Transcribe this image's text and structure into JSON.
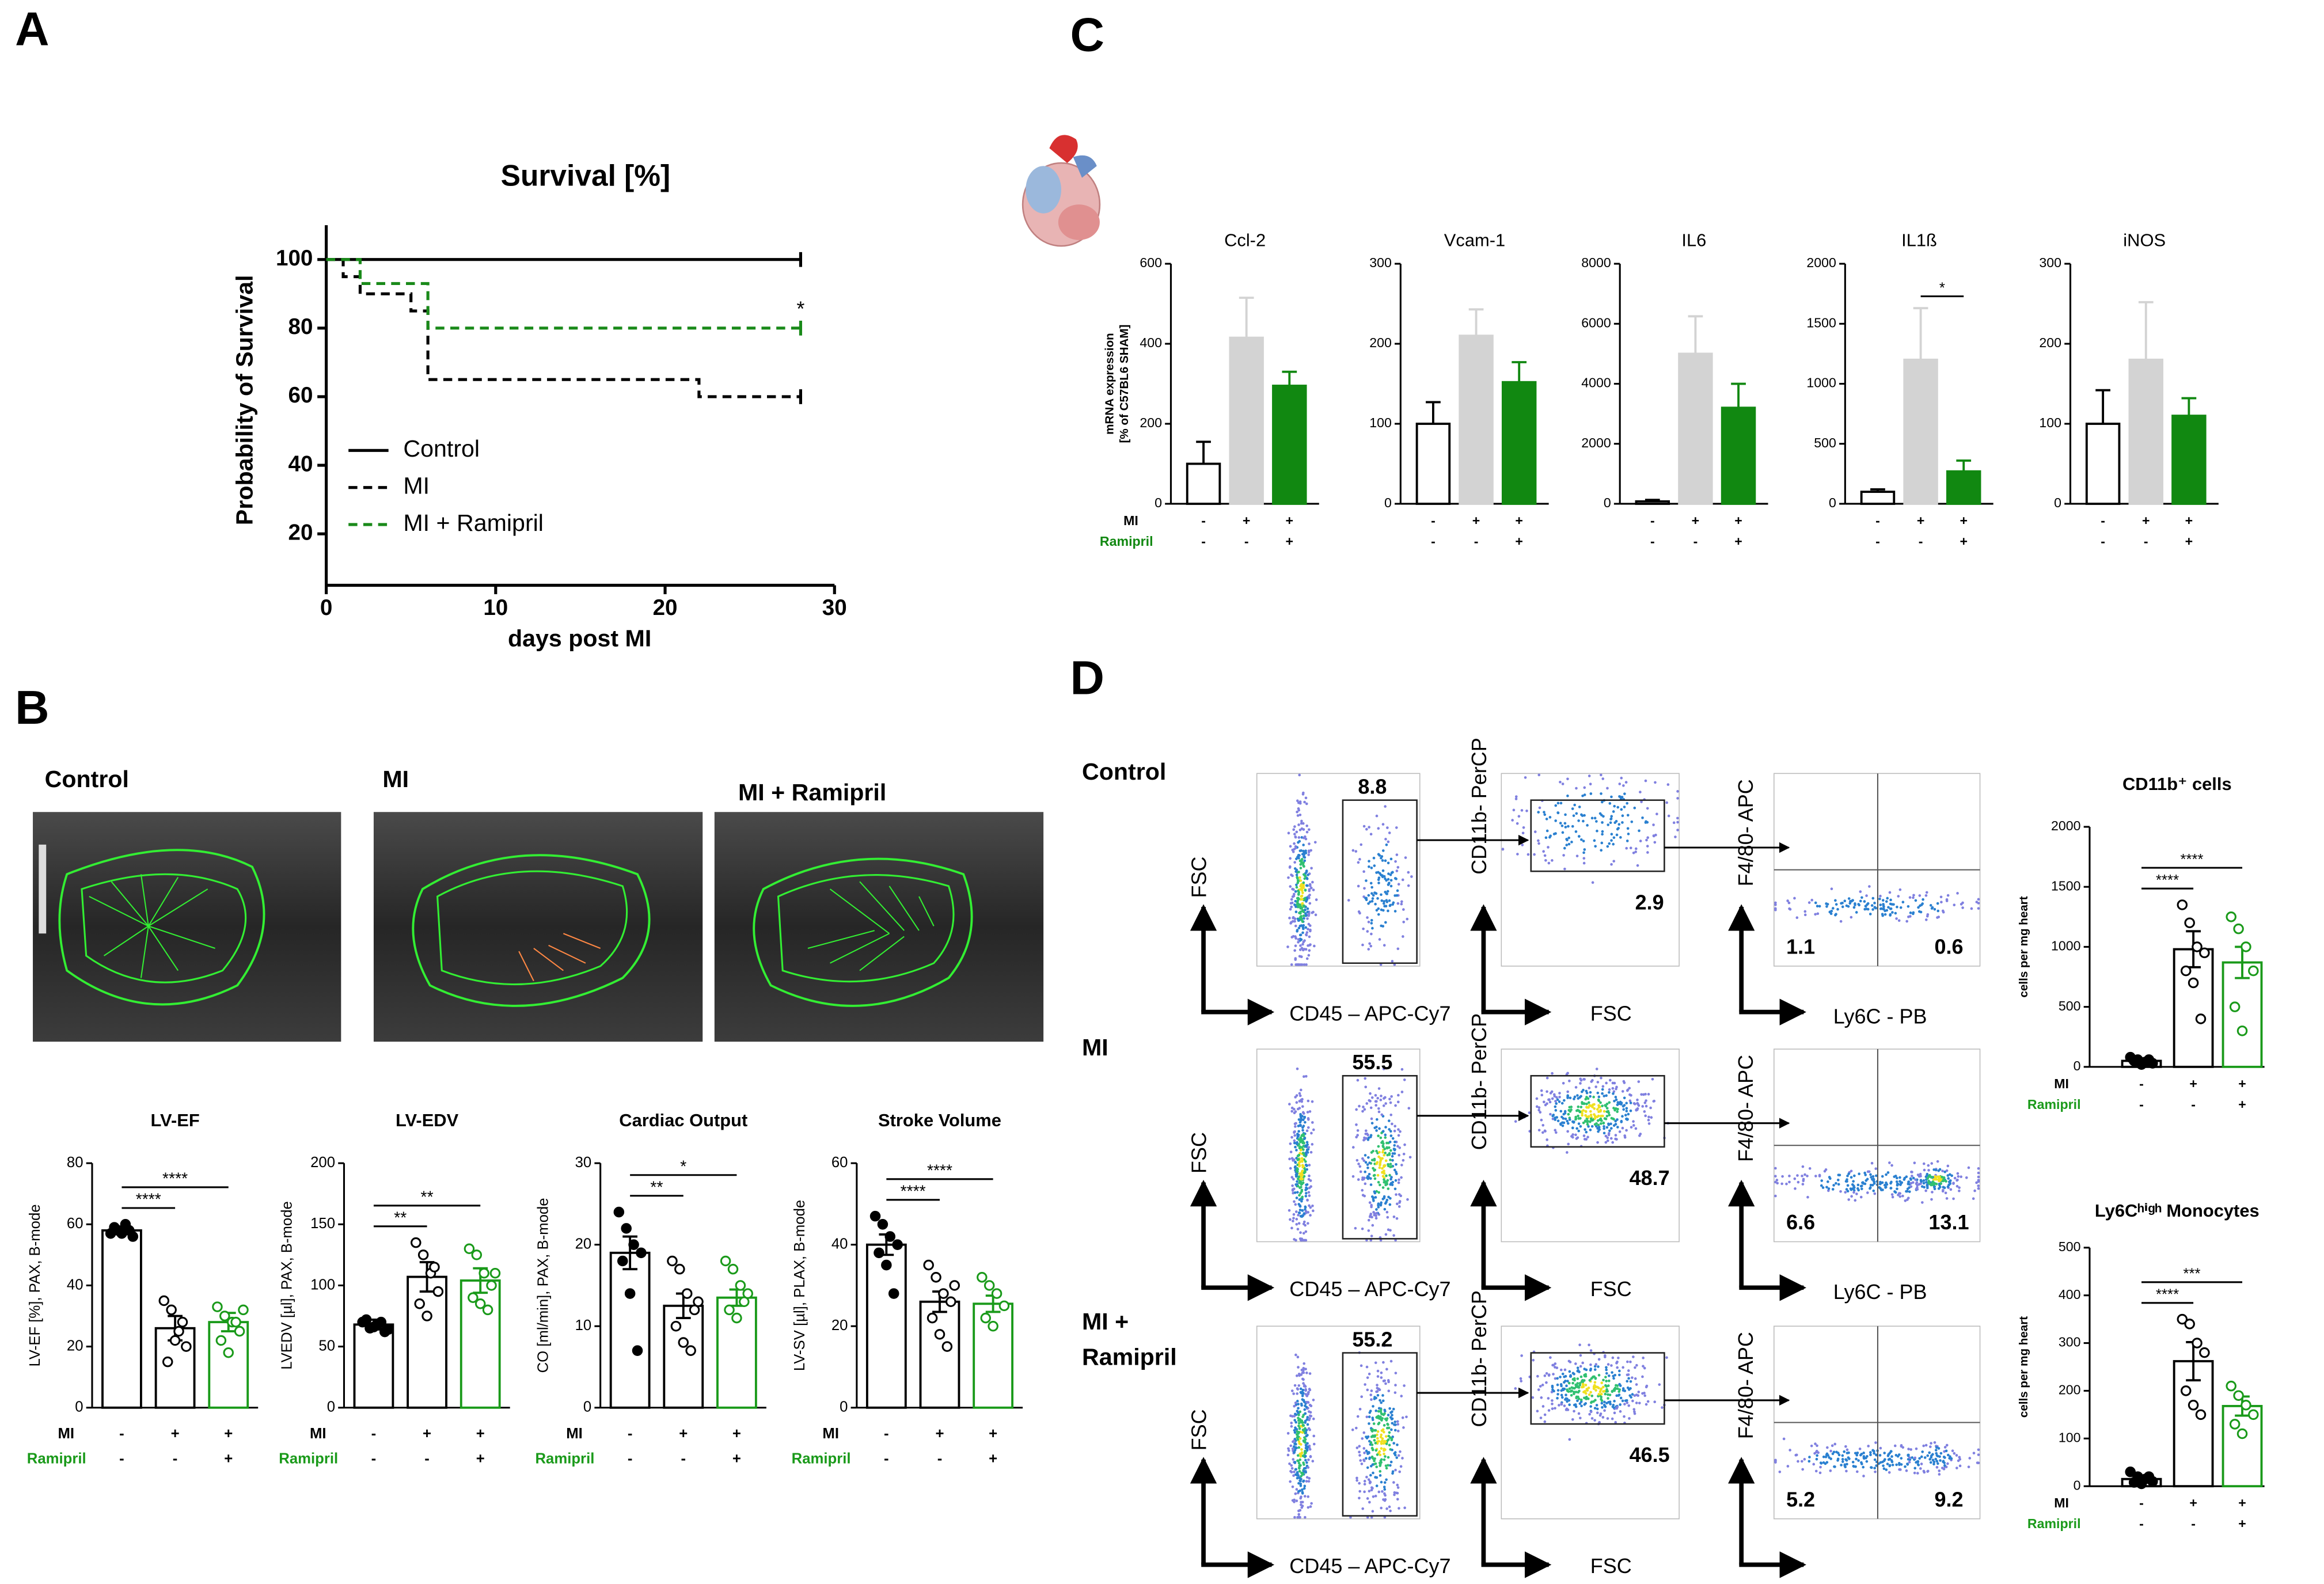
{
  "panel_labels": [
    "A",
    "B",
    "C",
    "D"
  ],
  "echo": {
    "labels": [
      "Control",
      "MI",
      "MI + Ramipril"
    ]
  },
  "flow": {
    "rows": [
      {
        "label": [
          "Control"
        ],
        "gates": [
          8.8,
          2.9,
          1.1,
          0.6
        ],
        "axis_labels": [
          "FSC",
          "CD45 – APC-Cy7",
          "CD11b- PerCP",
          "FSC",
          "F4/80- APC",
          "Ly6C - PB"
        ]
      },
      {
        "label": [
          "MI"
        ],
        "gates": [
          55.5,
          48.7,
          6.6,
          13.1
        ],
        "axis_labels": [
          "FSC",
          "CD45 – APC-Cy7",
          "CD11b- PerCP",
          "FSC",
          "F4/80- APC",
          "Ly6C - PB"
        ]
      },
      {
        "label": [
          "MI +",
          "Ramipril"
        ],
        "gates": [
          55.2,
          46.5,
          5.2,
          9.2
        ],
        "axis_labels": [
          "FSC",
          "CD45 – APC-Cy7",
          "CD11b- PerCP",
          "FSC",
          "F4/80- APC"
        ]
      }
    ]
  },
  "chart_data": [
    {
      "type": "line",
      "step": true,
      "title": "Survival [%]",
      "xlabel": "days post MI",
      "ylabel": "Probability of Survival",
      "xlim": [
        0,
        30
      ],
      "xticks": [
        0,
        10,
        20,
        30
      ],
      "ylim": [
        5,
        110
      ],
      "yticks": [
        20,
        40,
        60,
        80,
        100
      ],
      "series": [
        {
          "name": "Control",
          "color": "#000000",
          "dashed": false,
          "x": [
            0,
            28
          ],
          "values": [
            100,
            100
          ]
        },
        {
          "name": "MI",
          "color": "#000000",
          "dashed": true,
          "x": [
            0,
            1,
            2,
            5,
            6,
            22,
            28
          ],
          "values": [
            100,
            95,
            90,
            85,
            65,
            60,
            60
          ]
        },
        {
          "name": "MI + Ramipril",
          "color": "#1a8a1a",
          "dashed": true,
          "x": [
            0,
            2,
            6,
            28
          ],
          "values": [
            100,
            93,
            80,
            80
          ]
        }
      ],
      "annotation": "*"
    },
    {
      "type": "bar",
      "title": "Ccl-2",
      "ylabel": [
        "mRNA expression",
        "[% of C57BL6 SHAM]"
      ],
      "ylim": [
        0,
        600
      ],
      "yticks": [
        0,
        200,
        400,
        600
      ],
      "values": [
        100,
        415,
        295
      ],
      "errors": [
        55,
        100,
        35
      ],
      "error_direction": "up",
      "colors": [
        "#ffffff",
        "#d3d3d3",
        "#118811"
      ],
      "edge_colors": [
        "#000000",
        "#d3d3d3",
        "#118811"
      ],
      "groups": [
        [
          "-",
          "+",
          "+"
        ],
        [
          "-",
          "-",
          "+"
        ]
      ],
      "group_labels": [
        "MI",
        "Ramipril"
      ],
      "group_label_colors": [
        "#000000",
        "#118811"
      ]
    },
    {
      "type": "bar",
      "title": "Vcam-1",
      "ylim": [
        0,
        300
      ],
      "yticks": [
        0,
        100,
        200,
        300
      ],
      "values": [
        100,
        210,
        152
      ],
      "errors": [
        27,
        33,
        25
      ],
      "error_direction": "up",
      "colors": [
        "#ffffff",
        "#d3d3d3",
        "#118811"
      ],
      "edge_colors": [
        "#000000",
        "#d3d3d3",
        "#118811"
      ],
      "groups": [
        [
          "-",
          "+",
          "+"
        ],
        [
          "-",
          "-",
          "+"
        ]
      ]
    },
    {
      "type": "bar",
      "title": "IL6",
      "ylim": [
        0,
        8000
      ],
      "yticks": [
        0,
        2000,
        4000,
        6000,
        8000
      ],
      "values": [
        80,
        5000,
        3200
      ],
      "errors": [
        50,
        1250,
        800
      ],
      "error_direction": "up",
      "colors": [
        "#ffffff",
        "#d3d3d3",
        "#118811"
      ],
      "edge_colors": [
        "#000000",
        "#d3d3d3",
        "#118811"
      ],
      "groups": [
        [
          "-",
          "+",
          "+"
        ],
        [
          "-",
          "-",
          "+"
        ]
      ]
    },
    {
      "type": "bar",
      "title": "IL1ß",
      "ylim": [
        0,
        2000
      ],
      "yticks": [
        0,
        500,
        1000,
        1500,
        2000
      ],
      "values": [
        100,
        1200,
        270
      ],
      "errors": [
        20,
        430,
        90
      ],
      "error_direction": "up",
      "colors": [
        "#ffffff",
        "#d3d3d3",
        "#118811"
      ],
      "edge_colors": [
        "#000000",
        "#d3d3d3",
        "#118811"
      ],
      "groups": [
        [
          "-",
          "+",
          "+"
        ],
        [
          "-",
          "-",
          "+"
        ]
      ],
      "significance": [
        {
          "label": "*",
          "from": 1,
          "to": 2
        }
      ]
    },
    {
      "type": "bar",
      "title": "iNOS",
      "ylim": [
        0,
        300
      ],
      "yticks": [
        0,
        100,
        200,
        300
      ],
      "values": [
        100,
        180,
        110
      ],
      "errors": [
        42,
        72,
        22
      ],
      "error_direction": "up",
      "colors": [
        "#ffffff",
        "#d3d3d3",
        "#118811"
      ],
      "edge_colors": [
        "#000000",
        "#d3d3d3",
        "#118811"
      ],
      "groups": [
        [
          "-",
          "+",
          "+"
        ],
        [
          "-",
          "-",
          "+"
        ]
      ]
    },
    {
      "type": "bar",
      "title": "LV-EF",
      "ylabel": "LV-EF [%], PAX, B-mode",
      "ylim": [
        0,
        80
      ],
      "yticks": [
        0,
        20,
        40,
        60,
        80
      ],
      "values": [
        58,
        26,
        28
      ],
      "errors": [
        1,
        4,
        3
      ],
      "error_direction": "both",
      "points": [
        [
          57,
          58,
          60,
          56,
          59,
          57,
          58
        ],
        [
          35,
          32,
          25,
          20,
          15,
          22,
          28
        ],
        [
          33,
          30,
          28,
          25,
          22,
          18,
          28,
          32
        ]
      ],
      "colors": [
        "#ffffff",
        "#ffffff",
        "#ffffff"
      ],
      "edge_colors": [
        "#000000",
        "#000000",
        "#1a9a1a"
      ],
      "point_fill": [
        "#000000",
        "#ffffff",
        "#ffffff"
      ],
      "groups": [
        [
          "-",
          "+",
          "+"
        ],
        [
          "-",
          "-",
          "+"
        ]
      ],
      "group_labels": [
        "MI",
        "Ramipril"
      ],
      "group_label_colors": [
        "#000000",
        "#1a9a1a"
      ],
      "significance": [
        {
          "label": "****",
          "from": 0,
          "to": 1
        },
        {
          "label": "****",
          "from": 0,
          "to": 2
        }
      ]
    },
    {
      "type": "bar",
      "title": "LV-EDV",
      "ylabel": "LVEDV [µl], PAX, B-mode",
      "ylim": [
        0,
        200
      ],
      "yticks": [
        0,
        50,
        100,
        150,
        200
      ],
      "values": [
        68,
        107,
        104
      ],
      "errors": [
        4,
        12,
        10
      ],
      "error_direction": "both",
      "points": [
        [
          70,
          65,
          68,
          62,
          72,
          66,
          70,
          64
        ],
        [
          135,
          125,
          110,
          95,
          85,
          75,
          115
        ],
        [
          130,
          125,
          110,
          100,
          90,
          85,
          80,
          110
        ]
      ],
      "colors": [
        "#ffffff",
        "#ffffff",
        "#ffffff"
      ],
      "edge_colors": [
        "#000000",
        "#000000",
        "#1a9a1a"
      ],
      "point_fill": [
        "#000000",
        "#ffffff",
        "#ffffff"
      ],
      "groups": [
        [
          "-",
          "+",
          "+"
        ],
        [
          "-",
          "-",
          "+"
        ]
      ],
      "group_labels": [
        "MI",
        "Ramipril"
      ],
      "group_label_colors": [
        "#000000",
        "#1a9a1a"
      ],
      "significance": [
        {
          "label": "**",
          "from": 0,
          "to": 1
        },
        {
          "label": "**",
          "from": 0,
          "to": 2
        }
      ]
    },
    {
      "type": "bar",
      "title": "Cardiac Output",
      "ylabel": "CO [ml/min], PAX, B-mode",
      "ylim": [
        0,
        30
      ],
      "yticks": [
        0,
        10,
        20,
        30
      ],
      "values": [
        19,
        12.5,
        13.5
      ],
      "errors": [
        2,
        1.5,
        1
      ],
      "error_direction": "both",
      "points": [
        [
          24,
          22,
          20,
          19,
          18,
          14,
          7
        ],
        [
          18,
          17,
          14,
          12,
          10,
          8,
          7,
          13
        ],
        [
          18,
          17,
          15,
          14,
          12,
          11,
          13
        ]
      ],
      "colors": [
        "#ffffff",
        "#ffffff",
        "#ffffff"
      ],
      "edge_colors": [
        "#000000",
        "#000000",
        "#1a9a1a"
      ],
      "point_fill": [
        "#000000",
        "#ffffff",
        "#ffffff"
      ],
      "groups": [
        [
          "-",
          "+",
          "+"
        ],
        [
          "-",
          "-",
          "+"
        ]
      ],
      "group_labels": [
        "MI",
        "Ramipril"
      ],
      "group_label_colors": [
        "#000000",
        "#1a9a1a"
      ],
      "significance": [
        {
          "label": "**",
          "from": 0,
          "to": 1
        },
        {
          "label": "*",
          "from": 0,
          "to": 2
        }
      ]
    },
    {
      "type": "bar",
      "title": "Stroke Volume",
      "ylabel": "LV-SV [µl], PLAX, B-mode",
      "ylim": [
        0,
        60
      ],
      "yticks": [
        0,
        20,
        40,
        60
      ],
      "values": [
        40,
        26,
        25.5
      ],
      "errors": [
        2.5,
        2.5,
        2
      ],
      "error_direction": "both",
      "points": [
        [
          47,
          45,
          42,
          40,
          38,
          35,
          28
        ],
        [
          35,
          32,
          28,
          26,
          22,
          18,
          15,
          30
        ],
        [
          32,
          30,
          28,
          25,
          22,
          20
        ]
      ],
      "colors": [
        "#ffffff",
        "#ffffff",
        "#ffffff"
      ],
      "edge_colors": [
        "#000000",
        "#000000",
        "#1a9a1a"
      ],
      "point_fill": [
        "#000000",
        "#ffffff",
        "#ffffff"
      ],
      "groups": [
        [
          "-",
          "+",
          "+"
        ],
        [
          "-",
          "-",
          "+"
        ]
      ],
      "group_labels": [
        "MI",
        "Ramipril"
      ],
      "group_label_colors": [
        "#000000",
        "#1a9a1a"
      ],
      "significance": [
        {
          "label": "****",
          "from": 0,
          "to": 1
        },
        {
          "label": "****",
          "from": 0,
          "to": 2
        }
      ]
    },
    {
      "type": "bar",
      "title": "CD11b⁺ cells",
      "ylabel": "cells per mg heart",
      "ylim": [
        0,
        2000
      ],
      "yticks": [
        0,
        500,
        1000,
        1500,
        2000
      ],
      "values": [
        50,
        980,
        870
      ],
      "errors": [
        20,
        150,
        130
      ],
      "error_direction": "both",
      "points": [
        [
          80,
          60,
          40,
          30,
          50,
          20,
          60
        ],
        [
          1350,
          1200,
          1000,
          950,
          800,
          700,
          400
        ],
        [
          1250,
          1150,
          1000,
          800,
          500,
          300
        ]
      ],
      "colors": [
        "#ffffff",
        "#ffffff",
        "#ffffff"
      ],
      "edge_colors": [
        "#000000",
        "#000000",
        "#1a9a1a"
      ],
      "point_fill": [
        "#000000",
        "#ffffff",
        "#ffffff"
      ],
      "groups": [
        [
          "-",
          "+",
          "+"
        ],
        [
          "-",
          "-",
          "+"
        ]
      ],
      "group_labels": [
        "MI",
        "Ramipril"
      ],
      "group_label_colors": [
        "#000000",
        "#1a9a1a"
      ],
      "significance": [
        {
          "label": "****",
          "from": 0,
          "to": 1
        },
        {
          "label": "****",
          "from": 0,
          "to": 2
        }
      ]
    },
    {
      "type": "bar",
      "title": "Ly6Cʰⁱᵍʰ Monocytes",
      "ylabel": "cells per mg heart",
      "ylim": [
        0,
        500
      ],
      "yticks": [
        0,
        100,
        200,
        300,
        400,
        500
      ],
      "values": [
        15,
        262,
        168
      ],
      "errors": [
        5,
        40,
        20
      ],
      "error_direction": "both",
      "points": [
        [
          30,
          20,
          15,
          10,
          8,
          5,
          20
        ],
        [
          350,
          340,
          300,
          280,
          200,
          170,
          150
        ],
        [
          210,
          190,
          170,
          150,
          130,
          110
        ]
      ],
      "colors": [
        "#ffffff",
        "#ffffff",
        "#ffffff"
      ],
      "edge_colors": [
        "#000000",
        "#000000",
        "#1a9a1a"
      ],
      "point_fill": [
        "#000000",
        "#ffffff",
        "#ffffff"
      ],
      "groups": [
        [
          "-",
          "+",
          "+"
        ],
        [
          "-",
          "-",
          "+"
        ]
      ],
      "group_labels": [
        "MI",
        "Ramipril"
      ],
      "group_label_colors": [
        "#000000",
        "#1a9a1a"
      ],
      "significance": [
        {
          "label": "****",
          "from": 0,
          "to": 1
        },
        {
          "label": "***",
          "from": 0,
          "to": 2
        }
      ]
    }
  ]
}
